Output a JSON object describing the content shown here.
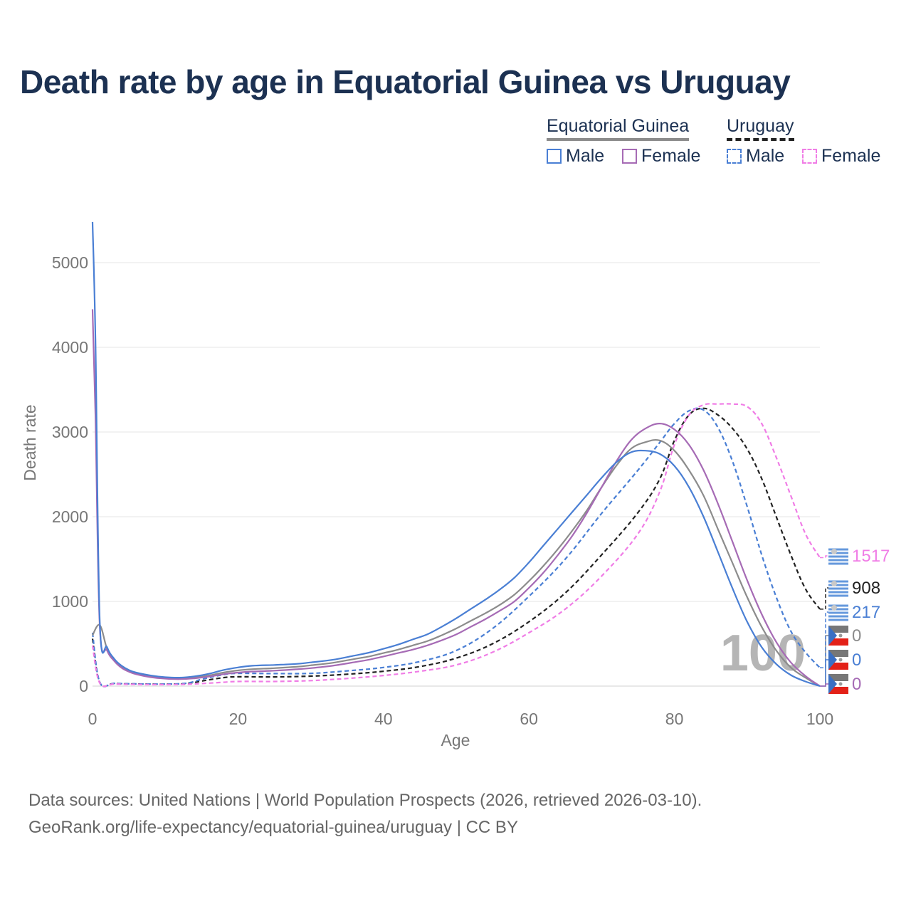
{
  "title": "Death rate by age in Equatorial Guinea vs Uruguay",
  "legend": {
    "groups": [
      {
        "name": "Equatorial Guinea",
        "line_style": "solid",
        "color": "#8c8c8c",
        "items": [
          {
            "label": "Male",
            "color": "#4a7fd4"
          },
          {
            "label": "Female",
            "color": "#a66bb5"
          }
        ]
      },
      {
        "name": "Uruguay",
        "line_style": "dashed",
        "color": "#222222",
        "items": [
          {
            "label": "Male",
            "color": "#4a7fd4"
          },
          {
            "label": "Female",
            "color": "#f07de6"
          }
        ]
      }
    ]
  },
  "source": {
    "line1": "Data sources: United Nations | World Population Prospects (2026, retrieved 2026-03-10).",
    "line2": "GeoRank.org/life-expectancy/equatorial-guinea/uruguay | CC BY"
  },
  "chart_data": {
    "type": "line",
    "title": "Death rate by age in Equatorial Guinea vs Uruguay",
    "xlabel": "Age",
    "ylabel": "Death rate",
    "xlim": [
      0,
      100
    ],
    "ylim": [
      0,
      5000
    ],
    "x_ticks": [
      0,
      20,
      40,
      60,
      80,
      100
    ],
    "y_ticks": [
      0,
      1000,
      2000,
      3000,
      4000,
      5000
    ],
    "grid": true,
    "current_age_label": "100",
    "series": [
      {
        "name": "Equatorial Guinea Total",
        "color": "#8c8c8c",
        "dashed": false,
        "points": [
          [
            0,
            600
          ],
          [
            1,
            720
          ],
          [
            2,
            440
          ],
          [
            3,
            310
          ],
          [
            4,
            230
          ],
          [
            5,
            180
          ],
          [
            6,
            150
          ],
          [
            8,
            115
          ],
          [
            10,
            95
          ],
          [
            12,
            90
          ],
          [
            14,
            100
          ],
          [
            16,
            125
          ],
          [
            18,
            160
          ],
          [
            20,
            185
          ],
          [
            22,
            200
          ],
          [
            25,
            212
          ],
          [
            28,
            228
          ],
          [
            30,
            245
          ],
          [
            33,
            275
          ],
          [
            36,
            320
          ],
          [
            38,
            350
          ],
          [
            40,
            390
          ],
          [
            42,
            430
          ],
          [
            44,
            480
          ],
          [
            46,
            530
          ],
          [
            48,
            600
          ],
          [
            50,
            680
          ],
          [
            52,
            770
          ],
          [
            54,
            860
          ],
          [
            56,
            960
          ],
          [
            58,
            1080
          ],
          [
            60,
            1240
          ],
          [
            62,
            1420
          ],
          [
            64,
            1620
          ],
          [
            66,
            1840
          ],
          [
            68,
            2080
          ],
          [
            70,
            2350
          ],
          [
            72,
            2600
          ],
          [
            74,
            2800
          ],
          [
            76,
            2880
          ],
          [
            78,
            2900
          ],
          [
            80,
            2780
          ],
          [
            82,
            2550
          ],
          [
            84,
            2250
          ],
          [
            86,
            1850
          ],
          [
            88,
            1450
          ],
          [
            90,
            1050
          ],
          [
            92,
            700
          ],
          [
            94,
            420
          ],
          [
            96,
            220
          ],
          [
            98,
            100
          ],
          [
            100,
            0
          ]
        ],
        "end_value": "0"
      },
      {
        "name": "Equatorial Guinea Male",
        "color": "#4a7fd4",
        "dashed": false,
        "points": [
          [
            0,
            5480
          ],
          [
            0.4,
            4100
          ],
          [
            1,
            760
          ],
          [
            2,
            460
          ],
          [
            3,
            320
          ],
          [
            4,
            240
          ],
          [
            5,
            190
          ],
          [
            6,
            160
          ],
          [
            8,
            125
          ],
          [
            10,
            105
          ],
          [
            12,
            100
          ],
          [
            14,
            115
          ],
          [
            16,
            145
          ],
          [
            18,
            190
          ],
          [
            20,
            220
          ],
          [
            22,
            240
          ],
          [
            25,
            250
          ],
          [
            28,
            262
          ],
          [
            30,
            280
          ],
          [
            33,
            310
          ],
          [
            36,
            360
          ],
          [
            38,
            395
          ],
          [
            40,
            440
          ],
          [
            42,
            490
          ],
          [
            44,
            550
          ],
          [
            46,
            610
          ],
          [
            48,
            700
          ],
          [
            50,
            800
          ],
          [
            52,
            910
          ],
          [
            54,
            1020
          ],
          [
            56,
            1140
          ],
          [
            58,
            1280
          ],
          [
            60,
            1460
          ],
          [
            62,
            1660
          ],
          [
            64,
            1860
          ],
          [
            66,
            2060
          ],
          [
            68,
            2260
          ],
          [
            70,
            2460
          ],
          [
            72,
            2640
          ],
          [
            74,
            2760
          ],
          [
            76,
            2780
          ],
          [
            78,
            2740
          ],
          [
            80,
            2600
          ],
          [
            82,
            2350
          ],
          [
            84,
            2000
          ],
          [
            86,
            1580
          ],
          [
            88,
            1150
          ],
          [
            90,
            760
          ],
          [
            92,
            460
          ],
          [
            94,
            260
          ],
          [
            96,
            130
          ],
          [
            98,
            55
          ],
          [
            100,
            0
          ]
        ],
        "end_value": "0"
      },
      {
        "name": "Equatorial Guinea Female",
        "color": "#a66bb5",
        "dashed": false,
        "points": [
          [
            0,
            4450
          ],
          [
            0.4,
            3200
          ],
          [
            1,
            700
          ],
          [
            2,
            420
          ],
          [
            3,
            295
          ],
          [
            4,
            215
          ],
          [
            5,
            170
          ],
          [
            6,
            140
          ],
          [
            8,
            105
          ],
          [
            10,
            88
          ],
          [
            12,
            82
          ],
          [
            14,
            92
          ],
          [
            16,
            112
          ],
          [
            18,
            140
          ],
          [
            20,
            160
          ],
          [
            22,
            172
          ],
          [
            25,
            182
          ],
          [
            28,
            198
          ],
          [
            30,
            212
          ],
          [
            33,
            240
          ],
          [
            36,
            282
          ],
          [
            38,
            312
          ],
          [
            40,
            350
          ],
          [
            42,
            390
          ],
          [
            44,
            430
          ],
          [
            46,
            480
          ],
          [
            48,
            540
          ],
          [
            50,
            610
          ],
          [
            52,
            700
          ],
          [
            54,
            790
          ],
          [
            56,
            890
          ],
          [
            58,
            1000
          ],
          [
            60,
            1160
          ],
          [
            62,
            1340
          ],
          [
            64,
            1550
          ],
          [
            66,
            1780
          ],
          [
            68,
            2050
          ],
          [
            70,
            2350
          ],
          [
            72,
            2650
          ],
          [
            74,
            2900
          ],
          [
            76,
            3040
          ],
          [
            78,
            3100
          ],
          [
            80,
            3030
          ],
          [
            82,
            2850
          ],
          [
            84,
            2550
          ],
          [
            86,
            2150
          ],
          [
            88,
            1700
          ],
          [
            90,
            1250
          ],
          [
            92,
            850
          ],
          [
            94,
            520
          ],
          [
            96,
            280
          ],
          [
            98,
            120
          ],
          [
            100,
            0
          ]
        ],
        "end_value": "0"
      },
      {
        "name": "Uruguay Total",
        "color": "#222222",
        "dashed": true,
        "points": [
          [
            0,
            560
          ],
          [
            1,
            40
          ],
          [
            3,
            30
          ],
          [
            6,
            25
          ],
          [
            10,
            22
          ],
          [
            13,
            30
          ],
          [
            15,
            60
          ],
          [
            18,
            100
          ],
          [
            20,
            110
          ],
          [
            25,
            108
          ],
          [
            30,
            118
          ],
          [
            35,
            140
          ],
          [
            40,
            175
          ],
          [
            45,
            230
          ],
          [
            50,
            330
          ],
          [
            55,
            500
          ],
          [
            60,
            760
          ],
          [
            65,
            1100
          ],
          [
            70,
            1550
          ],
          [
            75,
            2050
          ],
          [
            78,
            2450
          ],
          [
            80,
            2900
          ],
          [
            82,
            3200
          ],
          [
            84,
            3280
          ],
          [
            86,
            3200
          ],
          [
            88,
            3040
          ],
          [
            90,
            2800
          ],
          [
            92,
            2450
          ],
          [
            94,
            2000
          ],
          [
            96,
            1550
          ],
          [
            98,
            1150
          ],
          [
            100,
            908
          ]
        ],
        "end_value": "908"
      },
      {
        "name": "Uruguay Male",
        "color": "#4a7fd4",
        "dashed": true,
        "points": [
          [
            0,
            630
          ],
          [
            1,
            45
          ],
          [
            3,
            32
          ],
          [
            6,
            26
          ],
          [
            10,
            24
          ],
          [
            13,
            35
          ],
          [
            15,
            80
          ],
          [
            18,
            135
          ],
          [
            20,
            150
          ],
          [
            25,
            148
          ],
          [
            30,
            150
          ],
          [
            35,
            180
          ],
          [
            40,
            220
          ],
          [
            45,
            290
          ],
          [
            50,
            420
          ],
          [
            55,
            680
          ],
          [
            60,
            1060
          ],
          [
            65,
            1500
          ],
          [
            70,
            2040
          ],
          [
            75,
            2550
          ],
          [
            78,
            2880
          ],
          [
            80,
            3100
          ],
          [
            82,
            3250
          ],
          [
            84,
            3260
          ],
          [
            86,
            3050
          ],
          [
            88,
            2650
          ],
          [
            90,
            2120
          ],
          [
            92,
            1550
          ],
          [
            94,
            1050
          ],
          [
            96,
            650
          ],
          [
            98,
            400
          ],
          [
            100,
            217
          ]
        ],
        "end_value": "217"
      },
      {
        "name": "Uruguay Female",
        "color": "#f07de6",
        "dashed": true,
        "points": [
          [
            0,
            480
          ],
          [
            1,
            35
          ],
          [
            3,
            25
          ],
          [
            6,
            20
          ],
          [
            10,
            18
          ],
          [
            13,
            22
          ],
          [
            15,
            30
          ],
          [
            18,
            45
          ],
          [
            20,
            55
          ],
          [
            25,
            55
          ],
          [
            30,
            65
          ],
          [
            35,
            90
          ],
          [
            40,
            125
          ],
          [
            45,
            175
          ],
          [
            50,
            250
          ],
          [
            55,
            400
          ],
          [
            60,
            630
          ],
          [
            65,
            910
          ],
          [
            70,
            1300
          ],
          [
            75,
            1800
          ],
          [
            78,
            2300
          ],
          [
            80,
            2850
          ],
          [
            82,
            3200
          ],
          [
            84,
            3320
          ],
          [
            86,
            3330
          ],
          [
            88,
            3330
          ],
          [
            90,
            3300
          ],
          [
            92,
            3100
          ],
          [
            94,
            2700
          ],
          [
            96,
            2250
          ],
          [
            98,
            1800
          ],
          [
            100,
            1517
          ]
        ],
        "end_value": "1517"
      }
    ]
  }
}
